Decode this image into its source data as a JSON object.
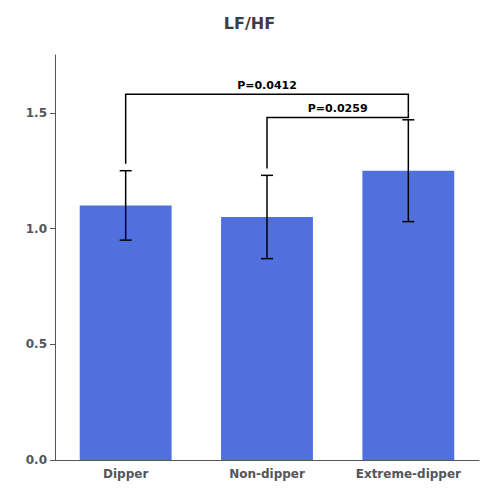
{
  "chart_data": {
    "type": "bar",
    "title": "LF/HF",
    "categories": [
      "Dipper",
      "Non-dipper",
      "Extreme-dipper"
    ],
    "values": [
      1.1,
      1.05,
      1.25
    ],
    "errors": [
      0.15,
      0.18,
      0.22
    ],
    "ylim": [
      0,
      1.75
    ],
    "yticks": [
      {
        "value": 0,
        "label": "0.0"
      },
      0.5,
      {
        "value": 1.0,
        "label": "1.0"
      },
      1.5
    ],
    "grid": false,
    "annotations": [
      {
        "from": "Dipper",
        "to": "Extreme-dipper",
        "y": 1.58,
        "label": "P=0.0412"
      },
      {
        "from": "Non-dipper",
        "to": "Extreme-dipper",
        "y": 1.48,
        "label": "P=0.0259"
      }
    ]
  }
}
